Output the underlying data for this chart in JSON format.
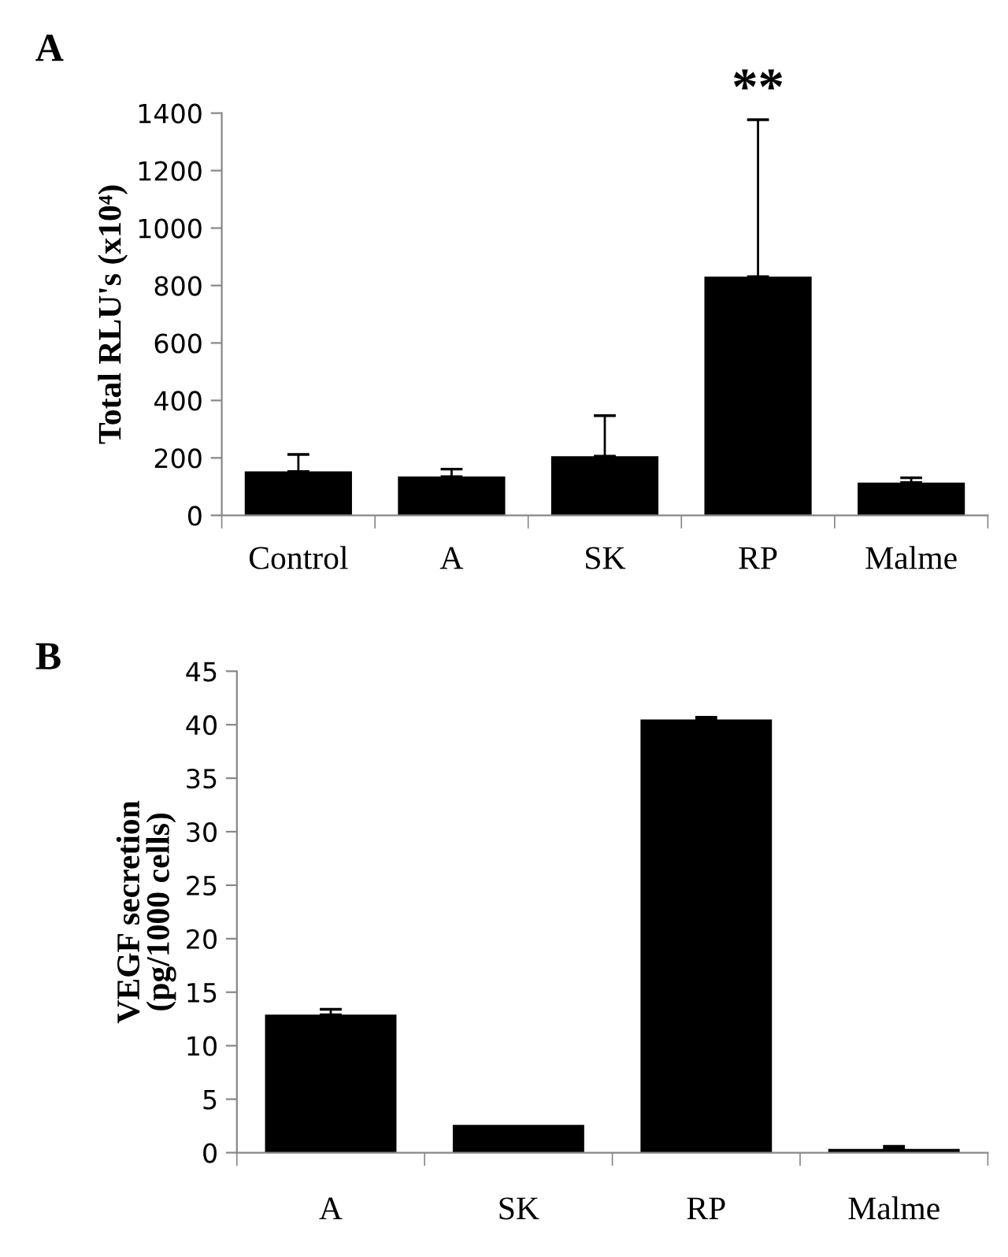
{
  "chart_data": [
    {
      "type": "bar",
      "ylabel": "Total RLU's (x10⁴)",
      "categories": [
        "Control",
        "A",
        "SK",
        "RP",
        "Malme"
      ],
      "series": [
        {
          "color": "#000000",
          "values": [
            153,
            135,
            206,
            831,
            114
          ],
          "errors": [
            [
              153,
              212
            ],
            [
              135,
              161
            ],
            [
              206,
              347
            ],
            [
              831,
              1377
            ],
            [
              114,
              131
            ]
          ]
        }
      ],
      "ylim": [
        0,
        1400
      ],
      "yticks": [
        0,
        200,
        400,
        600,
        800,
        1000,
        1200,
        1400
      ],
      "grid": false,
      "legend": false,
      "annotations": [
        "A",
        {
          "text": "**",
          "x": "RP",
          "y": 1377
        }
      ]
    },
    {
      "type": "bar",
      "ylabel": "VEGF secretion\n(pg/1000 cells)",
      "categories": [
        "A",
        "SK",
        "RP",
        "Malme"
      ],
      "series": [
        {
          "color": "#000000",
          "values": [
            12.9,
            2.6,
            40.5,
            0.35
          ],
          "errors": [
            [
              12.9,
              13.4
            ],
            null,
            [
              40.5,
              40.7
            ],
            [
              0.35,
              0.6
            ]
          ]
        }
      ],
      "ylim": [
        0,
        45
      ],
      "yticks": [
        0,
        5,
        10,
        15,
        20,
        25,
        30,
        35,
        40,
        45
      ],
      "grid": false,
      "legend": false,
      "annotations": [
        "B"
      ]
    }
  ]
}
